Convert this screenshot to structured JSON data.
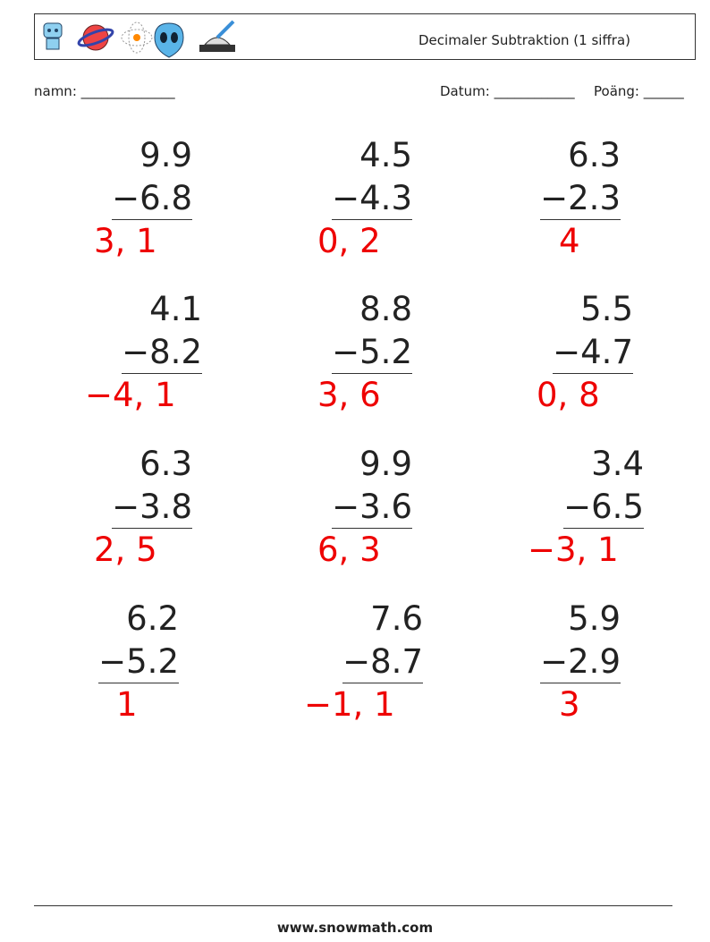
{
  "header": {
    "title": "Decimaler Subtraktion (1 siffra)"
  },
  "fields": {
    "name": "namn: ______________",
    "date": "Datum: ____________",
    "score": "Poäng: ______"
  },
  "problems": [
    {
      "top": "9.9",
      "bottom": "−6.8",
      "answer": "3, 1"
    },
    {
      "top": "4.5",
      "bottom": "−4.3",
      "answer": "0, 2"
    },
    {
      "top": "6.3",
      "bottom": "−2.3",
      "answer": "4"
    },
    {
      "top": "4.1",
      "bottom": "−8.2",
      "answer": "−4, 1"
    },
    {
      "top": "8.8",
      "bottom": "−5.2",
      "answer": "3, 6"
    },
    {
      "top": "5.5",
      "bottom": "−4.7",
      "answer": "0, 8"
    },
    {
      "top": "6.3",
      "bottom": "−3.8",
      "answer": "2, 5"
    },
    {
      "top": "9.9",
      "bottom": "−3.6",
      "answer": "6, 3"
    },
    {
      "top": "3.4",
      "bottom": "−6.5",
      "answer": "−3, 1"
    },
    {
      "top": "6.2",
      "bottom": "−5.2",
      "answer": "1"
    },
    {
      "top": "7.6",
      "bottom": "−8.7",
      "answer": "−1, 1"
    },
    {
      "top": "5.9",
      "bottom": "−2.9",
      "answer": "3"
    }
  ],
  "footer": "www.snowmath.com"
}
